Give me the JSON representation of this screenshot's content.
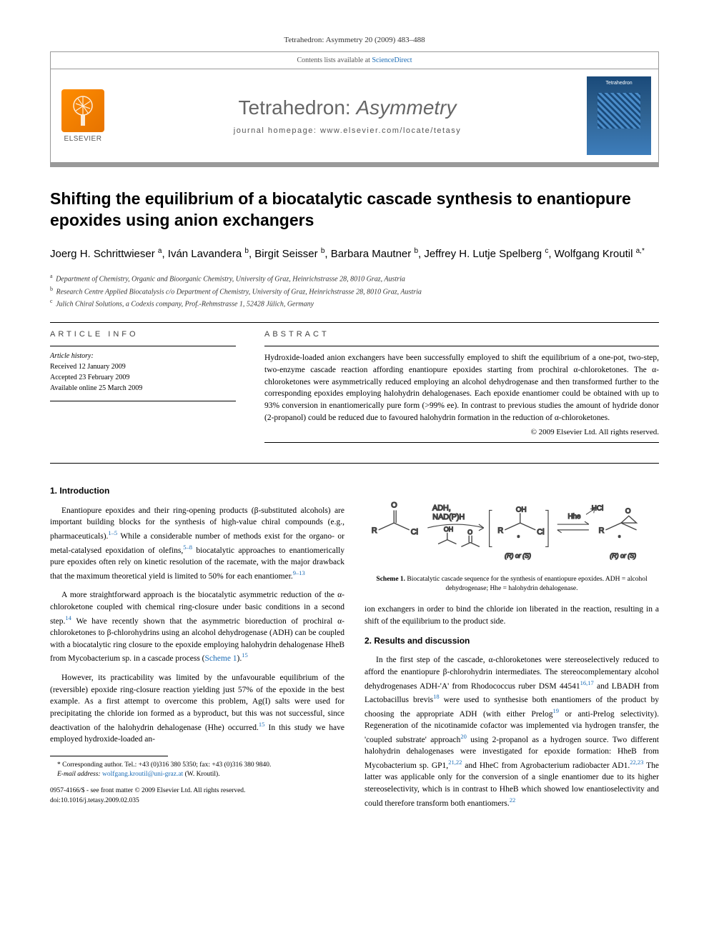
{
  "citation": "Tetrahedron: Asymmetry 20 (2009) 483–488",
  "header": {
    "contents_label": "Contents lists available at ",
    "contents_link": "ScienceDirect",
    "journal_name_a": "Tetrahedron: ",
    "journal_name_b": "Asymmetry",
    "homepage_label": "journal homepage: www.elsevier.com/locate/tetasy",
    "publisher": "ELSEVIER",
    "cover_label": "Tetrahedron"
  },
  "title": "Shifting the equilibrium of a biocatalytic cascade synthesis to enantiopure epoxides using anion exchangers",
  "authors_html": "Joerg H. Schrittwieser <sup>a</sup>, Iván Lavandera <sup>b</sup>, Birgit Seisser <sup>b</sup>, Barbara Mautner <sup>b</sup>, Jeffrey H. Lutje Spelberg <sup>c</sup>, Wolfgang Kroutil <sup>a,*</sup>",
  "affiliations": {
    "a": "Department of Chemistry, Organic and Bioorganic Chemistry, University of Graz, Heinrichstrasse 28, 8010 Graz, Austria",
    "b": "Research Centre Applied Biocatalysis c/o Department of Chemistry, University of Graz, Heinrichstrasse 28, 8010 Graz, Austria",
    "c": "Julich Chiral Solutions, a Codexis company, Prof.-Rehmstrasse 1, 52428 Jülich, Germany"
  },
  "article_info": {
    "heading": "ARTICLE INFO",
    "history_label": "Article history:",
    "received": "Received 12 January 2009",
    "accepted": "Accepted 23 February 2009",
    "online": "Available online 25 March 2009"
  },
  "abstract": {
    "heading": "ABSTRACT",
    "text": "Hydroxide-loaded anion exchangers have been successfully employed to shift the equilibrium of a one-pot, two-step, two-enzyme cascade reaction affording enantiopure epoxides starting from prochiral α-chloroketones. The α-chloroketones were asymmetrically reduced employing an alcohol dehydrogenase and then transformed further to the corresponding epoxides employing halohydrin dehalogenases. Each epoxide enantiomer could be obtained with up to 93% conversion in enantiomerically pure form (>99% ee). In contrast to previous studies the amount of hydride donor (2-propanol) could be reduced due to favoured halohydrin formation in the reduction of α-chloroketones.",
    "copyright": "© 2009 Elsevier Ltd. All rights reserved."
  },
  "sections": {
    "intro_heading": "1. Introduction",
    "intro_p1": "Enantiopure epoxides and their ring-opening products (β-substituted alcohols) are important building blocks for the synthesis of high-value chiral compounds (e.g., pharmaceuticals).",
    "intro_p1_ref": "1–5",
    "intro_p1b": " While a considerable number of methods exist for the organo- or metal-catalysed epoxidation of olefins,",
    "intro_p1b_ref": "5–8",
    "intro_p1c": " biocatalytic approaches to enantiomerically pure epoxides often rely on kinetic resolution of the racemate, with the major drawback that the maximum theoretical yield is limited to 50% for each enantiomer.",
    "intro_p1c_ref": "9–13",
    "intro_p2": "A more straightforward approach is the biocatalytic asymmetric reduction of the α-chloroketone coupled with chemical ring-closure under basic conditions in a second step.",
    "intro_p2_ref": "14",
    "intro_p2b": " We have recently shown that the asymmetric bioreduction of prochiral α-chloroketones to β-chlorohydrins using an alcohol dehydrogenase (ADH) can be coupled with a biocatalytic ring closure to the epoxide employing halohydrin dehalogenase HheB from Mycobacterium sp. in a cascade process (",
    "intro_p2_link": "Scheme 1",
    "intro_p2c": ").",
    "intro_p2c_ref": "15",
    "intro_p3": "However, its practicability was limited by the unfavourable equilibrium of the (reversible) epoxide ring-closure reaction yielding just 57% of the epoxide in the best example. As a first attempt to overcome this problem, Ag(I) salts were used for precipitating the chloride ion formed as a byproduct, but this was not successful, since deactivation of the halohydrin dehalogenase (Hhe) occurred.",
    "intro_p3_ref": "15",
    "intro_p3b": " In this study we have employed hydroxide-loaded an-",
    "col2_continue": "ion exchangers in order to bind the chloride ion liberated in the reaction, resulting in a shift of the equilibrium to the product side.",
    "results_heading": "2. Results and discussion",
    "results_p1a": "In the first step of the cascade, α-chloroketones were stereoselectively reduced to afford the enantiopure β-chlorohydrin intermediates. The stereocomplementary alcohol dehydrogenases ADH-'A' from Rhodococcus ruber DSM 44541",
    "results_r1": "16,17",
    "results_p1b": " and LBADH from Lactobacillus brevis",
    "results_r2": "18",
    "results_p1c": " were used to synthesise both enantiomers of the product by choosing the appropriate ADH (with either Prelog",
    "results_r3": "19",
    "results_p1d": " or anti-Prelog selectivity). Regeneration of the nicotinamide cofactor was implemented via hydrogen transfer, the 'coupled substrate' approach",
    "results_r4": "20",
    "results_p1e": " using 2-propanol as a hydrogen source. Two different halohydrin dehalogenases were investigated for epoxide formation: HheB from Mycobacterium sp. GP1,",
    "results_r5": "21,22",
    "results_p1f": " and HheC from Agrobacterium radiobacter AD1.",
    "results_r6": "22,23",
    "results_p1g": " The latter was applicable only for the conversion of a single enantiomer due to its higher stereoselectivity, which is in contrast to HheB which showed low enantioselectivity and could therefore transform both enantiomers.",
    "results_r7": "22"
  },
  "scheme": {
    "labels": {
      "adh": "ADH,",
      "nadph": "NAD(P)H",
      "hhe": "Hhe",
      "hcl": "HCl",
      "r": "R",
      "o": "O",
      "cl": "Cl",
      "oh": "OH",
      "stereo": "(R) or (S)"
    },
    "caption_a": "Scheme 1.",
    "caption_b": " Biocatalytic cascade sequence for the synthesis of enantiopure epoxides. ADH = alcohol dehydrogenase; Hhe = halohydrin dehalogenase.",
    "colors": {
      "line": "#444444",
      "text": "#333333"
    }
  },
  "footnote": {
    "corresponding": "* Corresponding author. Tel.: +43 (0)316 380 5350; fax: +43 (0)316 380 9840.",
    "email_label": "E-mail address:",
    "email": "wolfgang.kroutil@uni-graz.at",
    "email_person": " (W. Kroutil)."
  },
  "doi": {
    "line1": "0957-4166/$ - see front matter © 2009 Elsevier Ltd. All rights reserved.",
    "line2": "doi:10.1016/j.tetasy.2009.02.035"
  }
}
